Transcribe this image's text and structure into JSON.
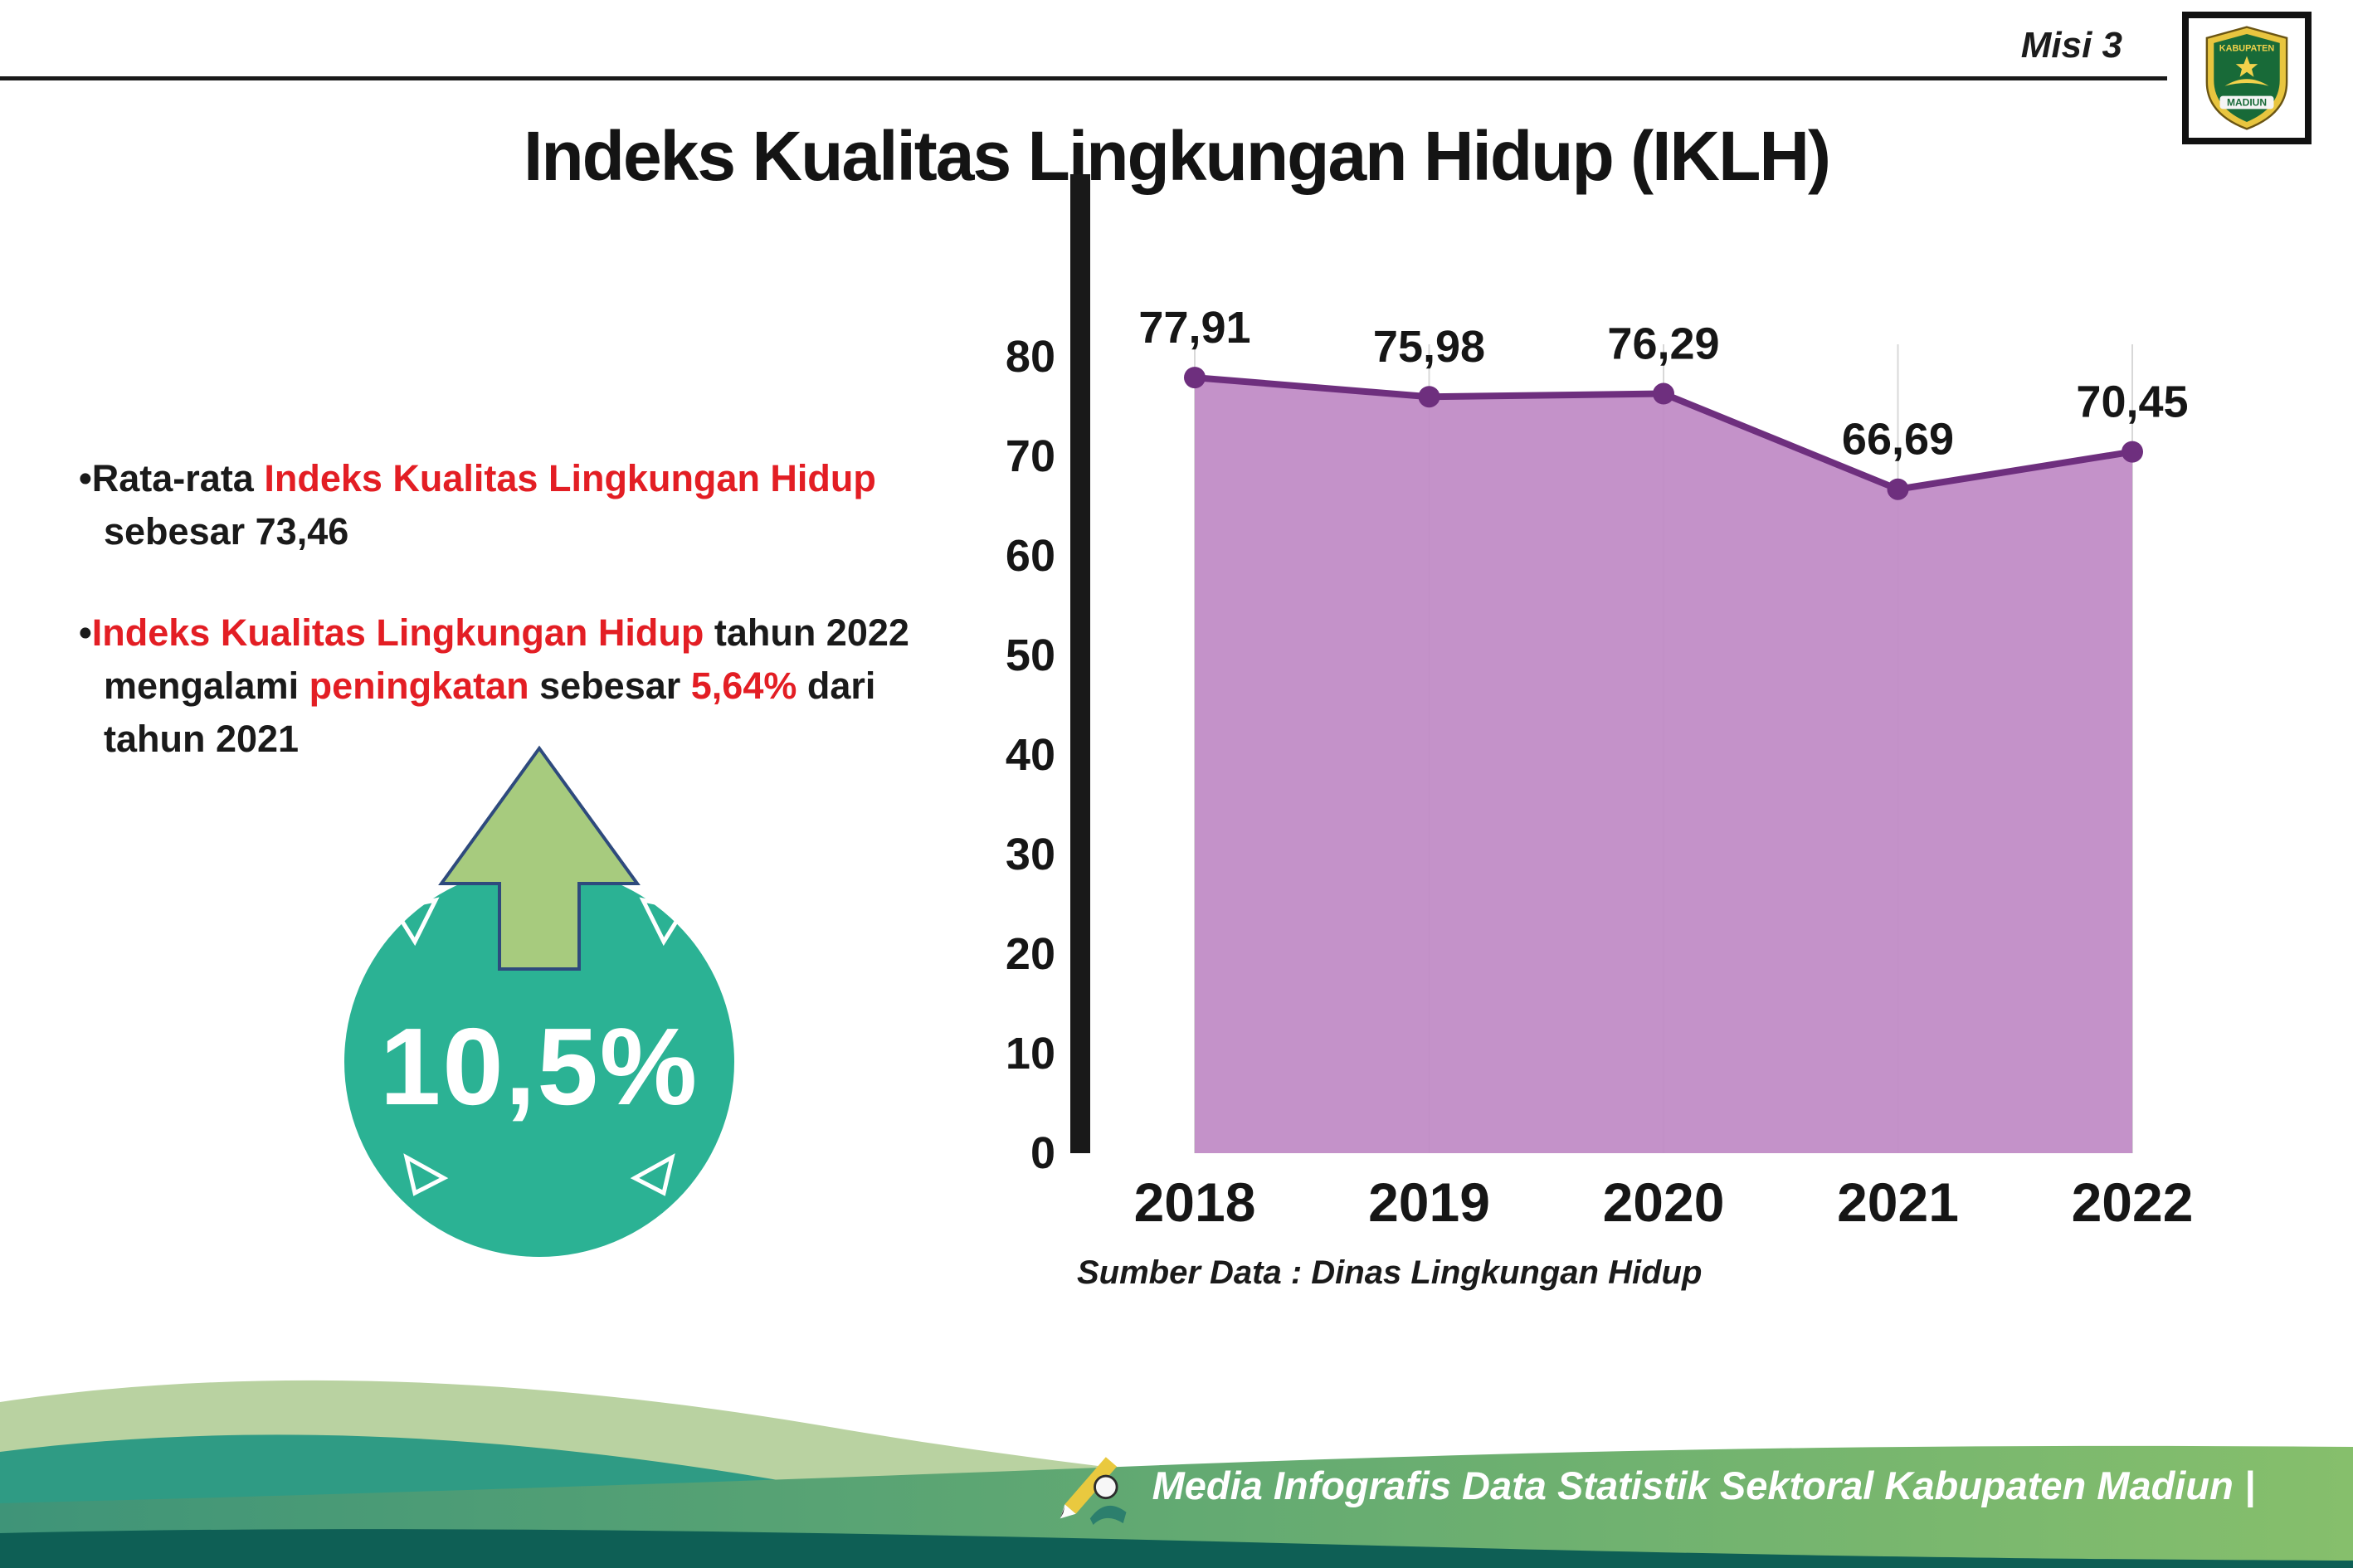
{
  "colors": {
    "ink": "#1a1a1a",
    "accent-red": "#e31e24",
    "badge-teal": "#2bb294",
    "arrow-green": "#a7cb7e",
    "arrow-outline": "#2e4a7d",
    "wave-light": "#b9d2a1",
    "wave-teal": "#2f9b84",
    "wave-main-a": "#3f9478",
    "wave-main-b": "#86bf6c",
    "wave-dark": "#0e5f55"
  },
  "header": {
    "misi_label": "Misi 3",
    "title": "Indeks Kualitas Lingkungan Hidup (IKLH)",
    "logo_top": "KABUPATEN",
    "logo_bottom": "MADIUN"
  },
  "bullets": {
    "b1": {
      "p1": "Rata-rata ",
      "p2": "Indeks Kualitas Lingkungan Hidup",
      "p3": " sebesar 73,46"
    },
    "b2": {
      "p1": "Indeks Kualitas Lingkungan Hidup",
      "p2": " tahun 2022 mengalami ",
      "p3": "peningkatan",
      "p4": " sebesar ",
      "p5": "5,64%",
      "p6": " dari tahun 2021"
    }
  },
  "increase_badge": {
    "value": "10,5%"
  },
  "chart_data": {
    "type": "area",
    "title": "Indeks Kualitas Lingkungan Hidup (IKLH)",
    "categories": [
      "2018",
      "2019",
      "2020",
      "2021",
      "2022"
    ],
    "values": [
      77.91,
      75.98,
      76.29,
      66.69,
      70.45
    ],
    "point_labels": [
      "77,91",
      "75,98",
      "76,29",
      "66,69",
      "70,45"
    ],
    "ylim": [
      0,
      80
    ],
    "yticks": [
      0,
      10,
      20,
      30,
      40,
      50,
      60,
      70,
      80
    ],
    "xlabel": "",
    "ylabel": "",
    "legend": "none",
    "grid": "vertical-light",
    "fill_color": "#c18cc6",
    "line_color": "#6e2f7e",
    "source_note": "Sumber Data : Dinas Lingkungan Hidup"
  },
  "footer": {
    "credit": "Media Infografis Data Statistik Sektoral Kabupaten Madiun |"
  }
}
